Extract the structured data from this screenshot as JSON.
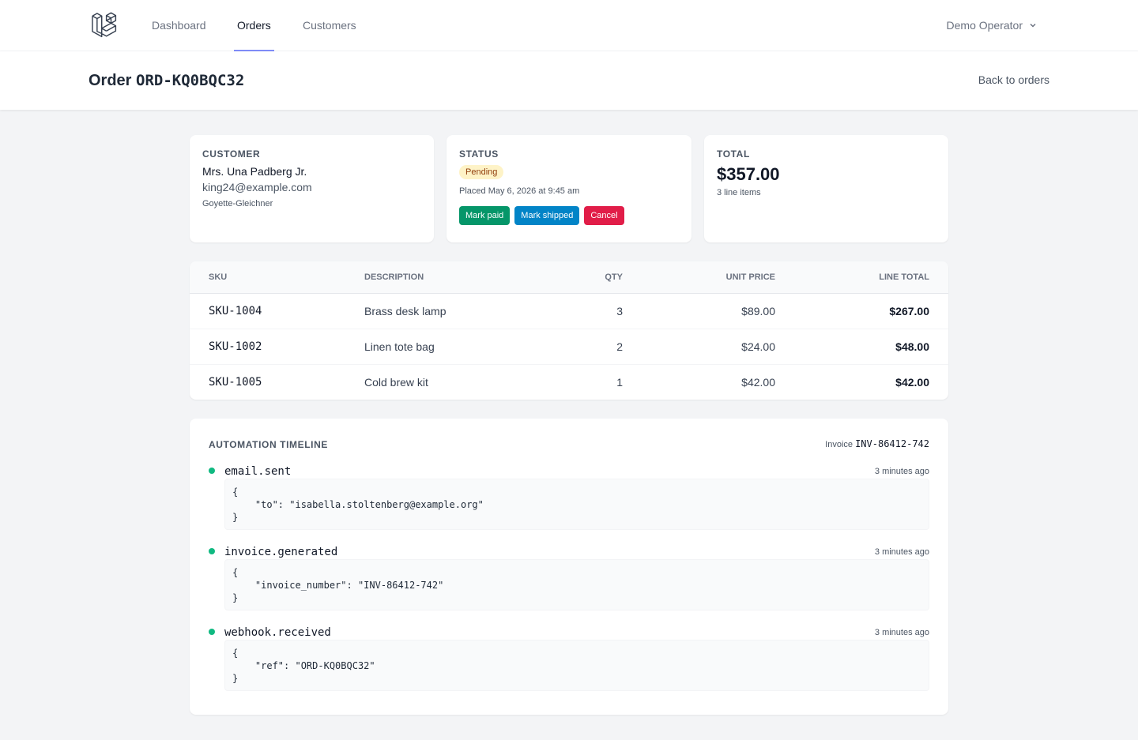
{
  "nav": {
    "links": [
      "Dashboard",
      "Orders",
      "Customers"
    ],
    "active": "Orders",
    "user": "Demo Operator"
  },
  "header": {
    "title_prefix": "Order",
    "order_code": "ORD-KQ0BQC32",
    "back_link": "Back to orders"
  },
  "customer": {
    "label": "CUSTOMER",
    "name": "Mrs. Una Padberg Jr.",
    "email": "king24@example.com",
    "company": "Goyette-Gleichner"
  },
  "status": {
    "label": "STATUS",
    "badge": "Pending",
    "placed": "Placed May 6, 2026 at 9:45 am",
    "buttons": {
      "mark_paid": "Mark paid",
      "mark_shipped": "Mark shipped",
      "cancel": "Cancel"
    }
  },
  "total": {
    "label": "TOTAL",
    "value": "$357.00",
    "subtitle": "3 line items"
  },
  "table": {
    "headers": {
      "sku": "SKU",
      "description": "DESCRIPTION",
      "qty": "QTY",
      "unit_price": "UNIT PRICE",
      "line_total": "LINE TOTAL"
    },
    "rows": [
      {
        "sku": "SKU-1004",
        "description": "Brass desk lamp",
        "qty": "3",
        "unit_price": "$89.00",
        "line_total": "$267.00"
      },
      {
        "sku": "SKU-1002",
        "description": "Linen tote bag",
        "qty": "2",
        "unit_price": "$24.00",
        "line_total": "$48.00"
      },
      {
        "sku": "SKU-1005",
        "description": "Cold brew kit",
        "qty": "1",
        "unit_price": "$42.00",
        "line_total": "$42.00"
      }
    ]
  },
  "timeline": {
    "title": "AUTOMATION TIMELINE",
    "invoice_label": "Invoice",
    "invoice_number": "INV-86412-742",
    "events": [
      {
        "name": "email.sent",
        "time": "3 minutes ago",
        "payload": "{\n    \"to\": \"isabella.stoltenberg@example.org\"\n}"
      },
      {
        "name": "invoice.generated",
        "time": "3 minutes ago",
        "payload": "{\n    \"invoice_number\": \"INV-86412-742\"\n}"
      },
      {
        "name": "webhook.received",
        "time": "3 minutes ago",
        "payload": "{\n    \"ref\": \"ORD-KQ0BQC32\"\n}"
      }
    ]
  },
  "colors": {
    "accent": "#818cf8",
    "success": "#059669",
    "info": "#0284c7",
    "danger": "#e11d48",
    "pending_bg": "#fef3c7",
    "timeline_dot": "#10b981"
  }
}
